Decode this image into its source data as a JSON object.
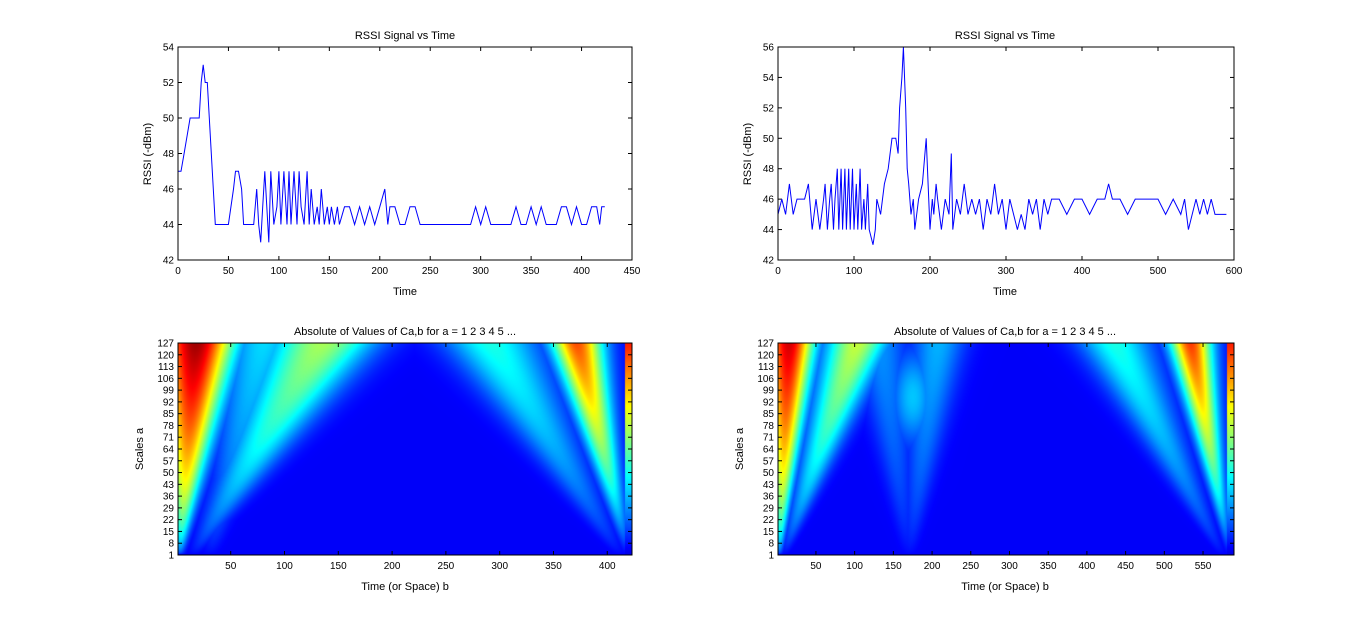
{
  "figure": {
    "background": "#ffffff",
    "line_color": "#0000ff",
    "colormap": "jet"
  },
  "chart_data": [
    {
      "type": "line",
      "title": "RSSI Signal vs Time",
      "xlabel": "Time",
      "ylabel": "RSSI (-dBm)",
      "xlim": [
        0,
        450
      ],
      "ylim": [
        42,
        54
      ],
      "xticks": [
        0,
        50,
        100,
        150,
        200,
        250,
        300,
        350,
        400,
        450
      ],
      "yticks": [
        42,
        44,
        46,
        48,
        50,
        52,
        54
      ],
      "series": [
        {
          "x": [
            0,
            3,
            6,
            9,
            12,
            15,
            18,
            21,
            23,
            25,
            27,
            29,
            31,
            33,
            35,
            37,
            40,
            45,
            50,
            55,
            57,
            60,
            63,
            65,
            68,
            70,
            75,
            78,
            80,
            82,
            84,
            86,
            88,
            90,
            92,
            95,
            98,
            100,
            102,
            105,
            108,
            110,
            112,
            115,
            118,
            120,
            122,
            125,
            128,
            130,
            132,
            135,
            138,
            140,
            142,
            145,
            148,
            150,
            152,
            155,
            158,
            160,
            165,
            170,
            175,
            180,
            185,
            190,
            195,
            200,
            205,
            208,
            210,
            215,
            220,
            225,
            230,
            235,
            240,
            245,
            250,
            260,
            270,
            280,
            290,
            295,
            300,
            305,
            310,
            320,
            330,
            335,
            340,
            345,
            350,
            355,
            360,
            365,
            370,
            375,
            380,
            385,
            390,
            395,
            400,
            405,
            410,
            415,
            418,
            420,
            423
          ],
          "y": [
            47,
            47,
            48,
            49,
            50,
            50,
            50,
            50,
            52,
            53,
            52,
            52,
            50,
            48,
            46,
            44,
            44,
            44,
            44,
            46,
            47,
            47,
            46,
            44,
            44,
            44,
            44,
            46,
            44,
            43,
            45,
            47,
            45,
            43,
            47,
            44,
            45,
            47,
            44,
            47,
            44,
            47,
            44,
            47,
            44,
            47,
            45,
            44,
            47,
            44,
            46,
            44,
            45,
            44,
            46,
            44,
            45,
            44,
            45,
            44,
            45,
            44,
            45,
            45,
            44,
            45,
            44,
            45,
            44,
            45,
            46,
            44,
            45,
            45,
            44,
            44,
            45,
            45,
            44,
            44,
            44,
            44,
            44,
            44,
            44,
            45,
            44,
            45,
            44,
            44,
            44,
            45,
            44,
            44,
            45,
            44,
            45,
            44,
            44,
            44,
            45,
            45,
            44,
            45,
            44,
            44,
            45,
            45,
            44,
            45,
            45
          ]
        }
      ]
    },
    {
      "type": "line",
      "title": "RSSI Signal vs Time",
      "xlabel": "Time",
      "ylabel": "RSSI (-dBm)",
      "xlim": [
        0,
        600
      ],
      "ylim": [
        42,
        56
      ],
      "xticks": [
        0,
        100,
        200,
        300,
        400,
        500,
        600
      ],
      "yticks": [
        42,
        44,
        46,
        48,
        50,
        52,
        54,
        56
      ],
      "series": [
        {
          "x": [
            0,
            5,
            10,
            15,
            20,
            25,
            30,
            35,
            40,
            45,
            50,
            55,
            60,
            62,
            65,
            68,
            70,
            73,
            75,
            78,
            80,
            83,
            85,
            88,
            90,
            93,
            95,
            98,
            100,
            103,
            105,
            108,
            110,
            113,
            115,
            118,
            120,
            125,
            128,
            130,
            135,
            140,
            145,
            150,
            155,
            158,
            160,
            163,
            165,
            168,
            170,
            172,
            175,
            178,
            180,
            185,
            190,
            195,
            200,
            203,
            205,
            208,
            210,
            215,
            220,
            225,
            228,
            230,
            235,
            240,
            245,
            250,
            255,
            260,
            265,
            270,
            275,
            280,
            285,
            290,
            295,
            300,
            305,
            310,
            315,
            320,
            325,
            330,
            335,
            340,
            345,
            350,
            355,
            360,
            370,
            380,
            390,
            400,
            410,
            420,
            430,
            435,
            440,
            450,
            460,
            470,
            480,
            490,
            500,
            510,
            520,
            530,
            535,
            540,
            545,
            550,
            555,
            560,
            565,
            570,
            575,
            580,
            585,
            590
          ],
          "y": [
            45,
            46,
            45,
            47,
            45,
            46,
            46,
            46,
            47,
            44,
            46,
            44,
            46,
            47,
            44,
            46,
            47,
            44,
            46,
            48,
            44,
            48,
            44,
            48,
            44,
            48,
            44,
            48,
            44,
            47,
            44,
            48,
            44,
            46,
            44,
            47,
            44,
            43,
            44,
            46,
            45,
            47,
            48,
            50,
            50,
            49,
            52,
            54,
            56,
            52,
            48,
            47,
            45,
            46,
            44,
            46,
            47,
            50,
            44,
            46,
            45,
            47,
            46,
            44,
            46,
            45,
            49,
            44,
            46,
            45,
            47,
            45,
            46,
            45,
            46,
            44,
            46,
            45,
            47,
            45,
            46,
            44,
            46,
            45,
            44,
            45,
            44,
            46,
            45,
            46,
            44,
            46,
            45,
            46,
            46,
            45,
            46,
            46,
            45,
            46,
            46,
            47,
            46,
            46,
            45,
            46,
            46,
            46,
            46,
            45,
            46,
            45,
            46,
            44,
            45,
            46,
            45,
            46,
            45,
            46,
            45,
            45,
            45,
            45
          ]
        }
      ]
    },
    {
      "type": "heatmap",
      "title": "Absolute of Values of Ca,b for a = 1 2 3 4 5 ...",
      "xlabel": "Time (or Space) b",
      "ylabel": "Scales a",
      "xlim": [
        1,
        423
      ],
      "ylim": [
        1,
        127
      ],
      "xticks": [
        50,
        100,
        150,
        200,
        250,
        300,
        350,
        400
      ],
      "yticks": [
        1,
        8,
        15,
        22,
        29,
        36,
        43,
        50,
        57,
        64,
        71,
        78,
        85,
        92,
        99,
        106,
        113,
        120,
        127
      ],
      "colormap": "jet",
      "colorbar": true
    },
    {
      "type": "heatmap",
      "title": "Absolute of Values of Ca,b for a = 1 2 3 4 5 ...",
      "xlabel": "Time (or Space) b",
      "ylabel": "Scales a",
      "xlim": [
        1,
        590
      ],
      "ylim": [
        1,
        127
      ],
      "xticks": [
        50,
        100,
        150,
        200,
        250,
        300,
        350,
        400,
        450,
        500,
        550
      ],
      "yticks": [
        1,
        8,
        15,
        22,
        29,
        36,
        43,
        50,
        57,
        64,
        71,
        78,
        85,
        92,
        99,
        106,
        113,
        120,
        127
      ],
      "colormap": "jet",
      "colorbar": true
    }
  ]
}
